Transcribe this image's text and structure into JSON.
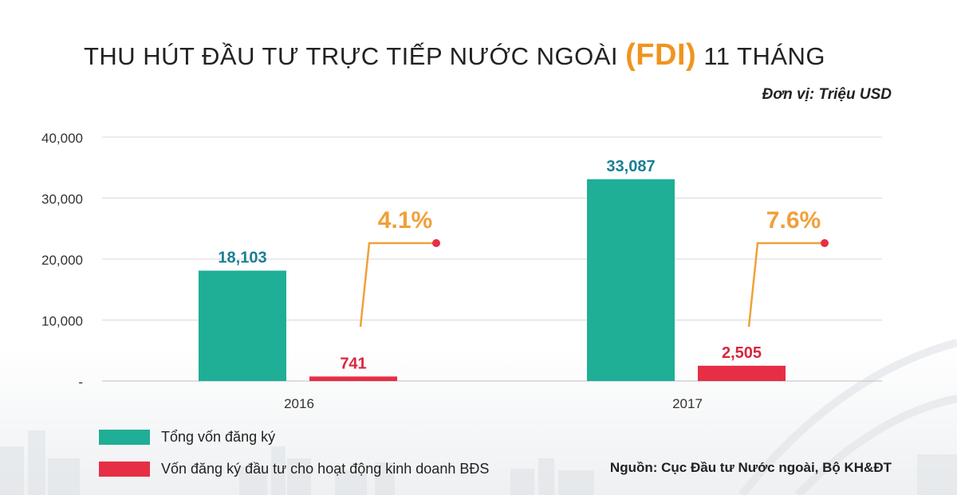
{
  "title": {
    "prefix": "THU HÚT ĐẦU TƯ TRỰC TIẾP NƯỚC NGOÀI",
    "highlight": "(FDI)",
    "suffix": "11 THÁNG"
  },
  "unit_note": "Đơn vị: Triệu USD",
  "source_note": "Nguồn: Cục Đầu tư Nước ngoài, Bộ KH&ĐT",
  "colors": {
    "total": "#1fae96",
    "realestate": "#e62e44",
    "callout": "#f0a03a",
    "total_label": "#1a7f93",
    "realestate_label": "#d9263d"
  },
  "chart_data": {
    "type": "bar",
    "categories": [
      "2016",
      "2017"
    ],
    "series": [
      {
        "name": "Tổng vốn đăng ký",
        "values": [
          18103,
          33087
        ],
        "labels": [
          "18,103",
          "33,087"
        ]
      },
      {
        "name": "Vốn đăng ký đầu tư cho hoạt động kinh doanh BĐS",
        "values": [
          741,
          2505
        ],
        "labels": [
          "741",
          "2,505"
        ]
      }
    ],
    "share_labels": [
      "4.1%",
      "7.6%"
    ],
    "ylim": [
      0,
      40000
    ],
    "yticks": [
      0,
      10000,
      20000,
      30000,
      40000
    ],
    "ytick_labels": [
      "-",
      "10,000",
      "20,000",
      "30,000",
      "40,000"
    ],
    "grid": true,
    "legend_position": "bottom-left"
  }
}
